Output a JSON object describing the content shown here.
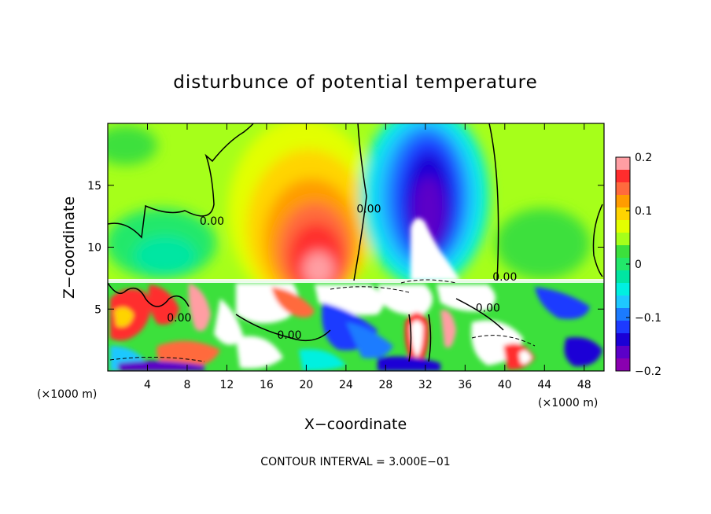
{
  "chart_data": {
    "type": "heatmap",
    "title": "disturbunce of potential temperature",
    "xlabel": "X−coordinate",
    "ylabel": "Z−coordinate",
    "x_unit": "(×1000 m)",
    "y_unit": "(×1000 m)",
    "xlim": [
      0,
      50
    ],
    "ylim": [
      0,
      20
    ],
    "x_ticks": [
      4,
      8,
      12,
      16,
      20,
      24,
      28,
      32,
      36,
      40,
      44,
      48
    ],
    "x_tick_labels": [
      "4",
      "8",
      "12",
      "16",
      "20",
      "24",
      "28",
      "32",
      "36",
      "40",
      "44",
      "48"
    ],
    "y_ticks": [
      5,
      10,
      15
    ],
    "y_tick_labels": [
      "5",
      "10",
      "15"
    ],
    "footer": "CONTOUR INTERVAL = 3.000E−01",
    "contour_labels": [
      {
        "text": "0.00",
        "x": 10.5,
        "y": 11.8
      },
      {
        "text": "0.00",
        "x": 26.3,
        "y": 12.8
      },
      {
        "text": "0.00",
        "x": 7.2,
        "y": 4.0
      },
      {
        "text": "0.00",
        "x": 18.3,
        "y": 2.6
      },
      {
        "text": "0.00",
        "x": 38.3,
        "y": 4.8
      },
      {
        "text": "0.00",
        "x": 40.0,
        "y": 7.3
      }
    ],
    "colorbar": {
      "min": -0.2,
      "max": 0.2,
      "ticks": [
        0.2,
        0.1,
        0,
        -0.1,
        -0.2
      ],
      "tick_labels": [
        "0.2",
        "0.1",
        "0",
        "−0.1",
        "−0.2"
      ],
      "colors": [
        "#ff9ea3",
        "#ff2d2d",
        "#ff6a3d",
        "#ff9c00",
        "#ffd400",
        "#e3ff00",
        "#a6ff1a",
        "#3ce03c",
        "#22e86a",
        "#00e6a2",
        "#00f0e0",
        "#1ec8ff",
        "#1b7bff",
        "#1d3aff",
        "#1a00d6",
        "#5b00c8",
        "#8a00b0"
      ]
    },
    "fields": {
      "upper_warm_anomaly": {
        "x": 20.5,
        "z": 11.5,
        "value": 0.2
      },
      "upper_cold_anomaly": {
        "x": 31.5,
        "z": 13.0,
        "value": -0.2
      }
    }
  }
}
